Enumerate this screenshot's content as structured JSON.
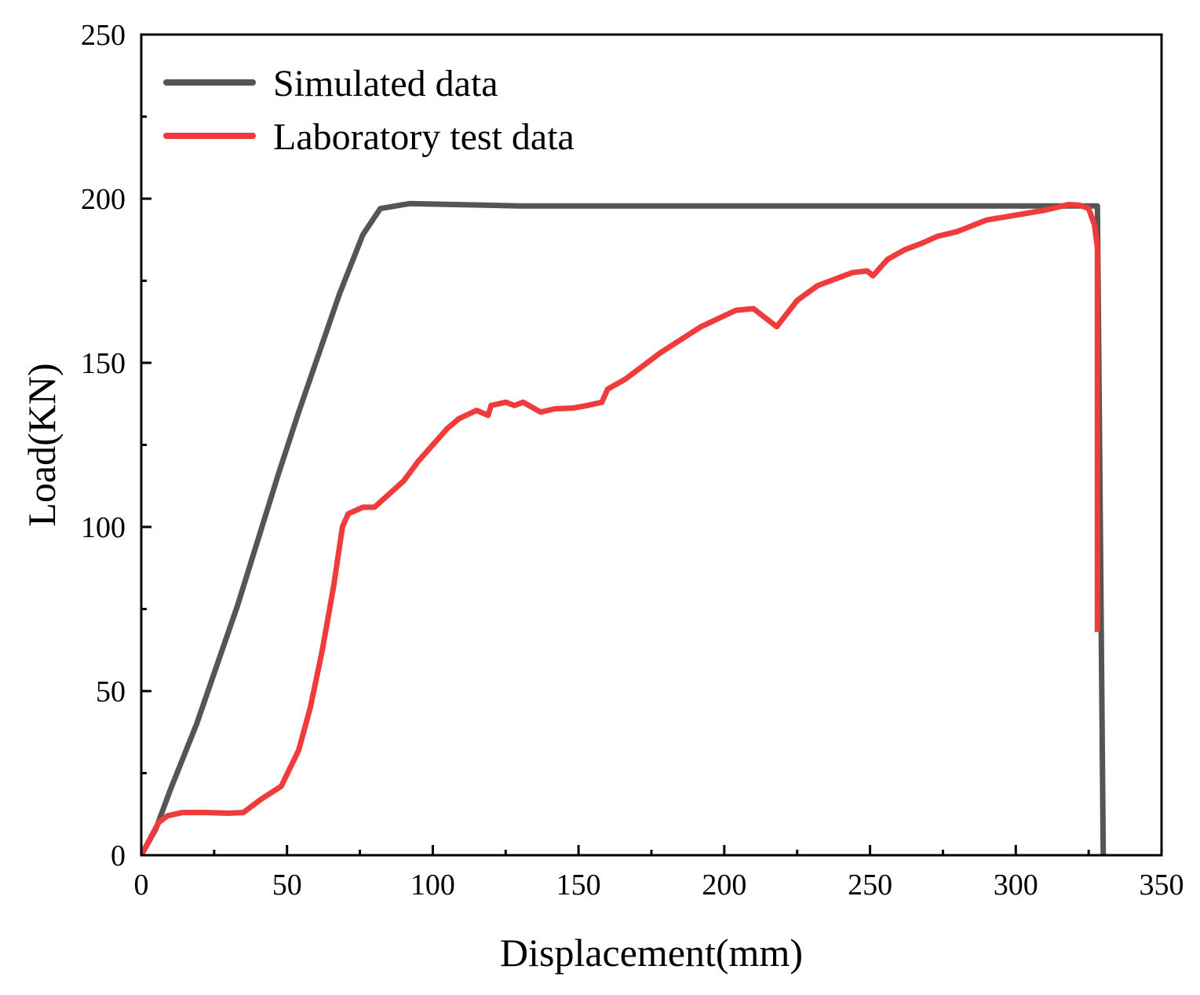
{
  "chart_data": {
    "type": "line",
    "title": "",
    "xlabel": "Displacement(mm)",
    "ylabel": "Load(KN)",
    "xlim": [
      0,
      350
    ],
    "ylim": [
      0,
      250
    ],
    "xticks": [
      0,
      50,
      100,
      150,
      200,
      250,
      300,
      350
    ],
    "yticks": [
      0,
      50,
      100,
      150,
      200,
      250
    ],
    "xtick_labels": [
      "0",
      "50",
      "100",
      "150",
      "200",
      "250",
      "300",
      "350"
    ],
    "ytick_labels": [
      "0",
      "50",
      "100",
      "150",
      "200",
      "250"
    ],
    "grid": false,
    "legend_position": "top-left",
    "series": [
      {
        "name": "Simulated data",
        "color": "#555555",
        "points": [
          [
            0,
            0
          ],
          [
            5,
            8
          ],
          [
            10,
            20
          ],
          [
            19,
            40
          ],
          [
            26,
            58
          ],
          [
            33,
            76
          ],
          [
            40,
            96
          ],
          [
            47,
            116
          ],
          [
            54,
            135
          ],
          [
            61,
            153
          ],
          [
            68,
            171
          ],
          [
            76,
            189
          ],
          [
            82,
            197
          ],
          [
            92,
            198.5
          ],
          [
            130,
            197.8
          ],
          [
            200,
            197.8
          ],
          [
            300,
            197.8
          ],
          [
            328,
            197.8
          ],
          [
            329,
            100
          ],
          [
            330,
            0
          ]
        ]
      },
      {
        "name": "Laboratory test data",
        "color": "#ef3b3b",
        "points": [
          [
            0,
            0
          ],
          [
            3,
            5
          ],
          [
            6,
            10
          ],
          [
            9,
            12
          ],
          [
            14,
            13
          ],
          [
            22,
            13
          ],
          [
            30,
            12.8
          ],
          [
            35,
            13
          ],
          [
            41,
            17
          ],
          [
            48,
            21
          ],
          [
            54,
            32
          ],
          [
            58,
            45
          ],
          [
            62,
            62
          ],
          [
            66,
            82
          ],
          [
            69,
            100
          ],
          [
            71,
            104
          ],
          [
            76,
            106
          ],
          [
            80,
            106
          ],
          [
            85,
            110
          ],
          [
            90,
            114
          ],
          [
            95,
            120
          ],
          [
            100,
            125
          ],
          [
            105,
            130
          ],
          [
            109,
            133
          ],
          [
            115,
            135.5
          ],
          [
            119,
            134
          ],
          [
            120,
            137
          ],
          [
            125,
            138
          ],
          [
            128,
            137
          ],
          [
            131,
            138
          ],
          [
            135,
            136
          ],
          [
            137,
            135
          ],
          [
            142,
            136
          ],
          [
            148,
            136.2
          ],
          [
            153,
            137
          ],
          [
            158,
            138
          ],
          [
            160,
            142
          ],
          [
            166,
            145
          ],
          [
            172,
            149
          ],
          [
            178,
            153
          ],
          [
            185,
            157
          ],
          [
            192,
            161
          ],
          [
            198,
            163.5
          ],
          [
            204,
            166
          ],
          [
            210,
            166.5
          ],
          [
            218,
            161
          ],
          [
            225,
            169
          ],
          [
            232,
            173.5
          ],
          [
            238,
            175.5
          ],
          [
            244,
            177.5
          ],
          [
            249,
            178
          ],
          [
            251,
            176.5
          ],
          [
            256,
            181.5
          ],
          [
            262,
            184.5
          ],
          [
            268,
            186.5
          ],
          [
            273,
            188.5
          ],
          [
            280,
            190
          ],
          [
            290,
            193.5
          ],
          [
            300,
            195
          ],
          [
            310,
            196.5
          ],
          [
            318,
            198.2
          ],
          [
            322,
            198
          ],
          [
            325,
            197
          ],
          [
            327,
            192
          ],
          [
            328,
            185
          ],
          [
            328,
            140
          ],
          [
            328,
            68
          ]
        ]
      }
    ]
  }
}
